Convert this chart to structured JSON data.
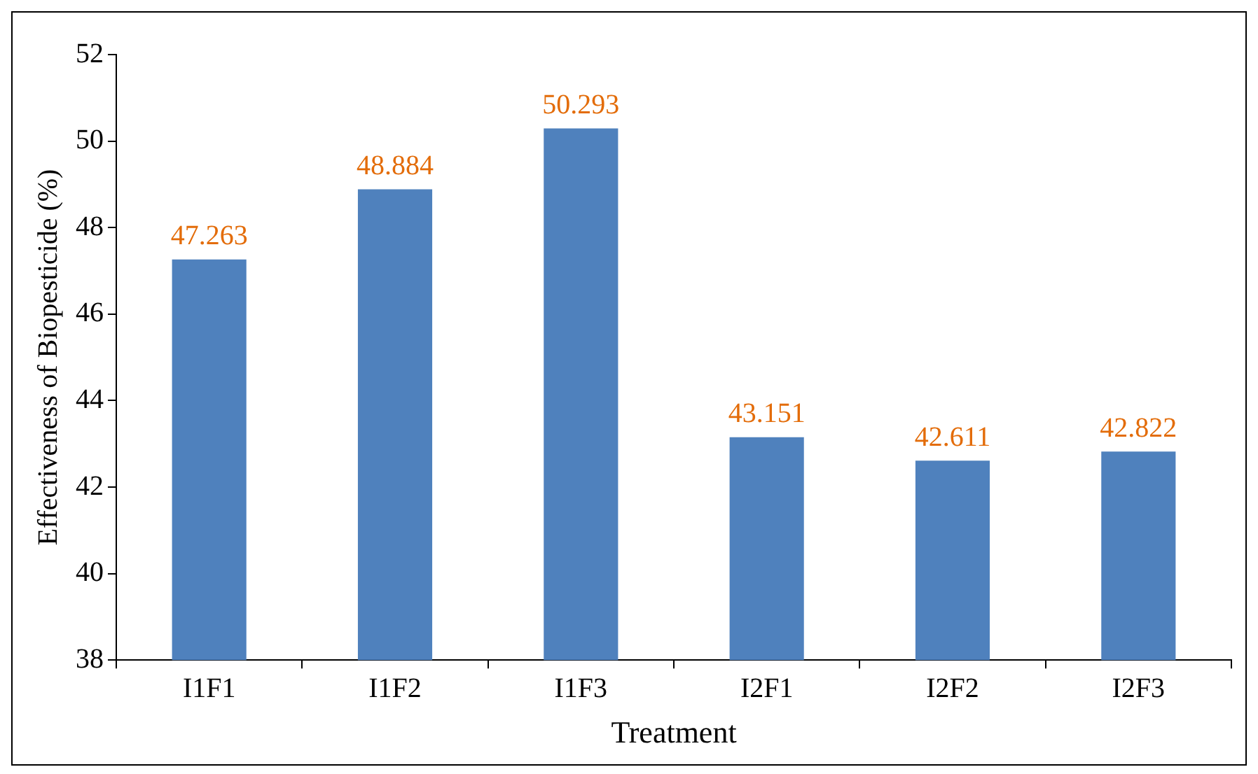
{
  "chart_data": {
    "type": "bar",
    "xlabel": "Treatment",
    "ylabel": "Effectiveness of Biopesticide (%)",
    "categories": [
      "I1F1",
      "I1F2",
      "I1F3",
      "I2F1",
      "I2F2",
      "I2F3"
    ],
    "values": [
      47.263,
      48.884,
      50.293,
      43.151,
      42.611,
      42.822
    ],
    "color": "#4f81bd",
    "ylim": [
      38,
      52
    ],
    "yticks": [
      38,
      40,
      42,
      44,
      46,
      48,
      50,
      52
    ],
    "grid": false,
    "legend": false,
    "data_labels": true
  }
}
